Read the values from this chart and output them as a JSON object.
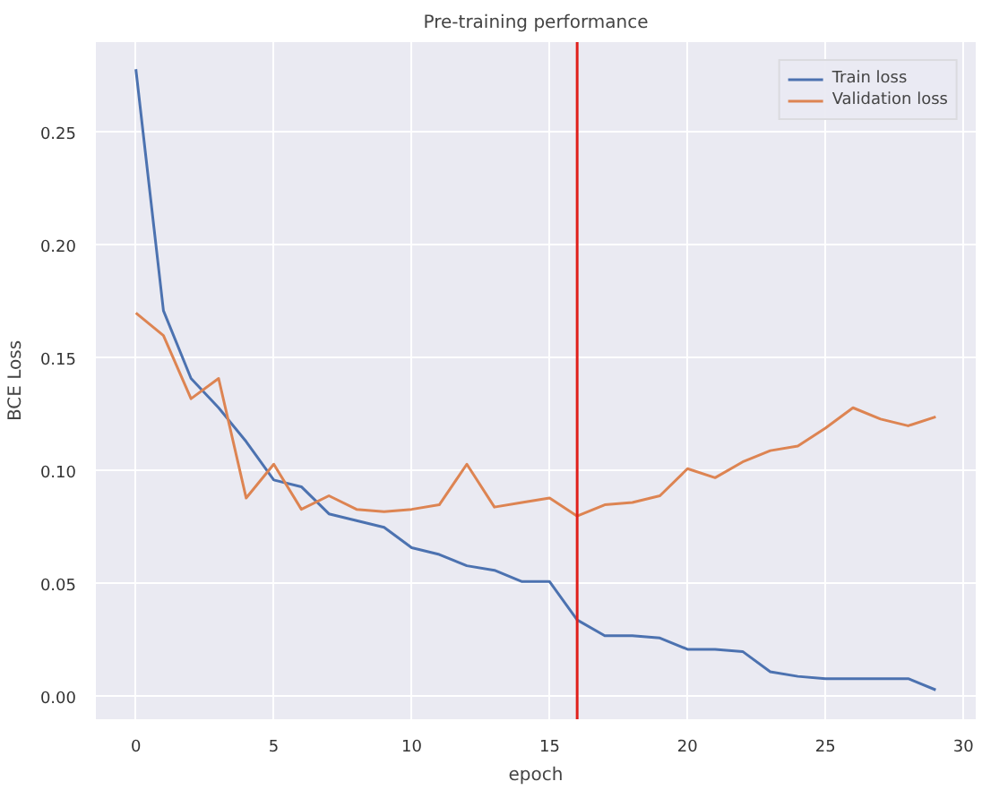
{
  "chart_data": {
    "type": "line",
    "title": "Pre-training performance",
    "xlabel": "epoch",
    "ylabel": "BCE Loss",
    "x": [
      0,
      1,
      2,
      3,
      4,
      5,
      6,
      7,
      8,
      9,
      10,
      11,
      12,
      13,
      14,
      15,
      16,
      17,
      18,
      19,
      20,
      21,
      22,
      23,
      24,
      25,
      26,
      27,
      28,
      29
    ],
    "series": [
      {
        "name": "Train loss",
        "color": "#4c72b0",
        "values": [
          0.278,
          0.171,
          0.141,
          0.128,
          0.113,
          0.096,
          0.093,
          0.081,
          0.078,
          0.075,
          0.066,
          0.063,
          0.058,
          0.056,
          0.051,
          0.051,
          0.034,
          0.027,
          0.027,
          0.026,
          0.021,
          0.021,
          0.02,
          0.011,
          0.009,
          0.008,
          0.008,
          0.008,
          0.008,
          0.003
        ]
      },
      {
        "name": "Validation loss",
        "color": "#dd8452",
        "values": [
          0.17,
          0.16,
          0.132,
          0.141,
          0.088,
          0.103,
          0.083,
          0.089,
          0.083,
          0.082,
          0.083,
          0.085,
          0.103,
          0.084,
          0.086,
          0.088,
          0.08,
          0.085,
          0.086,
          0.089,
          0.101,
          0.097,
          0.104,
          0.109,
          0.111,
          0.119,
          0.128,
          0.123,
          0.12,
          0.124
        ]
      }
    ],
    "xlim": [
      -1.45,
      30.45
    ],
    "ylim": [
      -0.01,
      0.29
    ],
    "xticks": [
      0,
      5,
      10,
      15,
      20,
      25,
      30
    ],
    "yticks": [
      {
        "value": 0,
        "label": "0.00"
      },
      {
        "value": 0.05,
        "label": "0.05"
      },
      {
        "value": 0.1,
        "label": "0.10"
      },
      {
        "value": 0.15,
        "label": "0.15"
      },
      {
        "value": 0.2,
        "label": "0.20"
      },
      {
        "value": 0.25,
        "label": "0.25"
      }
    ],
    "ref_lines": [
      {
        "axis": "x",
        "value": 16,
        "color": "#e0201b"
      }
    ],
    "grid": true,
    "legend": "top right",
    "marker": "none",
    "line_style": "solid"
  }
}
